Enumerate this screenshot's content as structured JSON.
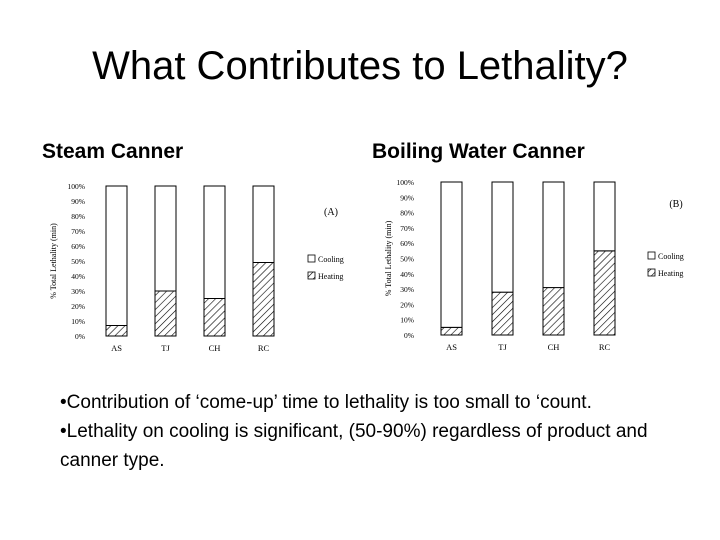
{
  "slide": {
    "title": "What Contributes to Lethality?",
    "bullets": [
      "•Contribution of ‘come-up’ time to lethality is too small to ‘count.",
      "•Lethality on cooling is significant, (50-90%) regardless of product and canner type."
    ]
  },
  "chart_titles": {
    "a": "Steam Canner",
    "b": "Boiling Water Canner"
  },
  "chart_data": [
    {
      "type": "bar",
      "stacked": true,
      "panel_label": "(A)",
      "ylabel": "% Total Lethality (min)",
      "ylim": [
        0,
        100
      ],
      "yticks": [
        "0%",
        "10%",
        "20%",
        "30%",
        "40%",
        "50%",
        "60%",
        "70%",
        "80%",
        "90%",
        "100%"
      ],
      "categories": [
        "AS",
        "TJ",
        "CH",
        "RC"
      ],
      "series": [
        {
          "name": "Heating",
          "values": [
            7,
            30,
            25,
            49
          ]
        },
        {
          "name": "Cooling",
          "values": [
            93,
            70,
            75,
            51
          ]
        }
      ],
      "legend": "right",
      "legend_order": [
        "Cooling",
        "Heating"
      ]
    },
    {
      "type": "bar",
      "stacked": true,
      "panel_label": "(B)",
      "ylabel": "% Total Lethality (min)",
      "ylim": [
        0,
        100
      ],
      "yticks": [
        "0%",
        "10%",
        "20%",
        "30%",
        "40%",
        "50%",
        "60%",
        "70%",
        "80%",
        "90%",
        "100%"
      ],
      "categories": [
        "AS",
        "TJ",
        "CH",
        "RC"
      ],
      "series": [
        {
          "name": "Heating",
          "values": [
            5,
            28,
            31,
            55
          ]
        },
        {
          "name": "Cooling",
          "values": [
            95,
            72,
            69,
            45
          ]
        }
      ],
      "legend": "right",
      "legend_order": [
        "Cooling",
        "Heating"
      ]
    }
  ]
}
